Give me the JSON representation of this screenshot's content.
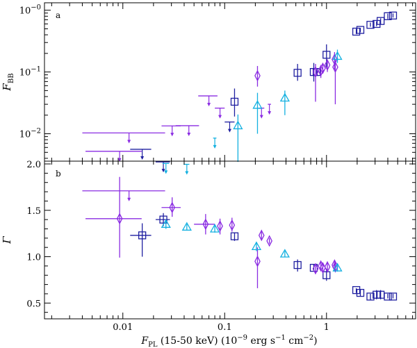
{
  "colors": {
    "purple": "#8a2be2",
    "navy": "#1f1fa0",
    "cyan": "#12b0e0",
    "axis": "#000000"
  },
  "chart_data": {
    "type": "scatter",
    "xlabel": "F_PL (15-50 keV) (10^-9 erg s^-1 cm^-2)",
    "xlabel_parts": {
      "main": "F",
      "sub": "PL",
      "rest": " (15-50 keV) (10",
      "exp1": "−9",
      "unit": " erg s",
      "exp2": "−1",
      "unit2": " cm",
      "exp3": "−2",
      "close": ")"
    },
    "x_scale": "log",
    "xlim": [
      0.0017,
      7.5
    ],
    "x_ticks": [
      {
        "v": 0.01,
        "label": "0.01"
      },
      {
        "v": 0.1,
        "label": "0.1"
      },
      {
        "v": 1,
        "label": "1"
      }
    ],
    "panels": [
      {
        "id": "a",
        "label": "a",
        "ylabel_main": "F",
        "ylabel_sub": "BB",
        "y_scale": "log",
        "ylim": [
          0.0036,
          1.32
        ],
        "y_ticks": [
          {
            "v": 0.01,
            "base": "10",
            "exp": "−2"
          },
          {
            "v": 0.1,
            "base": "10",
            "exp": "−1"
          },
          {
            "v": 1,
            "base": "10",
            "exp": "−0"
          }
        ],
        "upper_limits": [
          {
            "series": "purple",
            "x": 0.0115,
            "xerr": [
              0.004,
              0.026
            ],
            "y": 0.0103
          },
          {
            "series": "purple",
            "x": 0.0093,
            "xerr": [
              0.0043,
              0.0153
            ],
            "y": 0.0052
          },
          {
            "series": "navy",
            "x": 0.0155,
            "xerr": [
              0.0118,
              0.019
            ],
            "y": 0.0056
          },
          {
            "series": "navy",
            "x": 0.025,
            "xerr": [
              0.021,
              0.029
            ],
            "y": 0.0035
          },
          {
            "series": "cyan",
            "x": 0.0265,
            "xerr": [
              0.0245,
              0.0285
            ],
            "y": 0.0033
          },
          {
            "series": "purple",
            "x": 0.0305,
            "xerr": [
              0.024,
              0.037
            ],
            "y": 0.0134
          },
          {
            "series": "purple",
            "x": 0.0445,
            "xerr": [
              0.033,
              0.056
            ],
            "y": 0.0135
          },
          {
            "series": "cyan",
            "x": 0.0425,
            "xerr": [
              0.0395,
              0.045
            ],
            "y": 0.0032
          },
          {
            "series": "purple",
            "x": 0.07,
            "xerr": [
              0.055,
              0.085
            ],
            "y": 0.041
          },
          {
            "series": "purple",
            "x": 0.09,
            "xerr": [
              0.08,
              0.1
            ],
            "y": 0.026
          },
          {
            "series": "cyan",
            "x": 0.08,
            "xerr": [
              0.077,
              0.083
            ],
            "y": 0.0085
          },
          {
            "series": "navy",
            "x": 0.112,
            "xerr": [
              0.1,
              0.125
            ],
            "y": 0.0155
          },
          {
            "series": "purple",
            "x": 0.23,
            "xerr": [
              0.215,
              0.245
            ],
            "y": 0.026
          },
          {
            "series": "purple",
            "x": 0.275,
            "xerr": [
              0.265,
              0.285
            ],
            "y": 0.03
          }
        ],
        "series": [
          {
            "name": "navy squares",
            "color": "navy",
            "marker": "square",
            "points": [
              {
                "x": 0.125,
                "y": 0.033,
                "ylo": 0.019,
                "yhi": 0.054
              },
              {
                "x": 0.52,
                "y": 0.097,
                "ylo": 0.072,
                "yhi": 0.135
              },
              {
                "x": 0.75,
                "y": 0.1,
                "ylo": 0.07,
                "yhi": 0.14
              },
              {
                "x": 0.8,
                "y": 0.1,
                "ylo": 0.09,
                "yhi": 0.11
              },
              {
                "x": 1.0,
                "y": 0.19,
                "ylo": 0.12,
                "yhi": 0.28
              },
              {
                "x": 1.96,
                "y": 0.45,
                "ylo": 0.41,
                "yhi": 0.5
              },
              {
                "x": 2.15,
                "y": 0.48,
                "ylo": 0.44,
                "yhi": 0.52
              },
              {
                "x": 2.7,
                "y": 0.58,
                "ylo": 0.54,
                "yhi": 0.63
              },
              {
                "x": 3.1,
                "y": 0.6,
                "ylo": 0.55,
                "yhi": 0.66
              },
              {
                "x": 3.4,
                "y": 0.67,
                "ylo": 0.6,
                "yhi": 0.74
              },
              {
                "x": 4.0,
                "y": 0.8,
                "ylo": 0.72,
                "yhi": 0.88
              },
              {
                "x": 4.5,
                "y": 0.82,
                "ylo": 0.76,
                "yhi": 0.89
              }
            ]
          },
          {
            "name": "purple diamonds",
            "color": "purple",
            "marker": "diamond",
            "points": [
              {
                "x": 0.21,
                "y": 0.087,
                "ylo": 0.058,
                "yhi": 0.125
              },
              {
                "x": 0.78,
                "y": 0.1,
                "ylo": 0.033,
                "yhi": 0.135
              },
              {
                "x": 0.88,
                "y": 0.105,
                "ylo": 0.08,
                "yhi": 0.13
              },
              {
                "x": 0.92,
                "y": 0.115,
                "ylo": 0.095,
                "yhi": 0.135
              },
              {
                "x": 1.02,
                "y": 0.13,
                "ylo": 0.1,
                "yhi": 0.16
              },
              {
                "x": 1.2,
                "y": 0.16,
                "ylo": 0.11,
                "yhi": 0.21
              },
              {
                "x": 1.22,
                "y": 0.12,
                "ylo": 0.03,
                "yhi": 0.16
              }
            ]
          },
          {
            "name": "cyan triangles",
            "color": "cyan",
            "marker": "triangle",
            "points": [
              {
                "x": 0.135,
                "y": 0.0135,
                "ylo": 0.0035,
                "yhi": 0.0205
              },
              {
                "x": 0.21,
                "y": 0.029,
                "ylo": 0.01,
                "yhi": 0.046
              },
              {
                "x": 0.39,
                "y": 0.038,
                "ylo": 0.02,
                "yhi": 0.05
              },
              {
                "x": 1.28,
                "y": 0.18,
                "ylo": 0.14,
                "yhi": 0.23
              }
            ]
          }
        ]
      },
      {
        "id": "b",
        "label": "b",
        "ylabel_main": "Γ",
        "y_scale": "linear",
        "ylim": [
          0.33,
          2.03
        ],
        "y_ticks": [
          {
            "v": 0.5,
            "label": "0.5"
          },
          {
            "v": 1.0,
            "label": "1.0"
          },
          {
            "v": 1.5,
            "label": "1.5"
          },
          {
            "v": 2.0,
            "label": "2.0"
          }
        ],
        "upper_limits": [
          {
            "series": "purple",
            "x": 0.0115,
            "xerr": [
              0.004,
              0.026
            ],
            "y": 1.71
          }
        ],
        "series": [
          {
            "name": "navy squares",
            "color": "navy",
            "marker": "square",
            "points": [
              {
                "x": 0.0155,
                "y": 1.23,
                "ylo": 1.0,
                "yhi": 1.36,
                "xlo": 0.0118,
                "xhi": 0.019
              },
              {
                "x": 0.025,
                "y": 1.4,
                "ylo": 1.33,
                "yhi": 1.47,
                "xlo": 0.021,
                "xhi": 0.029
              },
              {
                "x": 0.125,
                "y": 1.22,
                "ylo": 1.17,
                "yhi": 1.26
              },
              {
                "x": 0.52,
                "y": 0.91,
                "ylo": 0.84,
                "yhi": 0.97
              },
              {
                "x": 0.75,
                "y": 0.88,
                "ylo": 0.85,
                "yhi": 0.92
              },
              {
                "x": 1.0,
                "y": 0.8,
                "ylo": 0.74,
                "yhi": 0.87
              },
              {
                "x": 1.96,
                "y": 0.64,
                "ylo": 0.61,
                "yhi": 0.66
              },
              {
                "x": 2.15,
                "y": 0.61,
                "ylo": 0.57,
                "yhi": 0.65
              },
              {
                "x": 2.7,
                "y": 0.57,
                "ylo": 0.53,
                "yhi": 0.6
              },
              {
                "x": 3.1,
                "y": 0.59,
                "ylo": 0.54,
                "yhi": 0.64
              },
              {
                "x": 3.4,
                "y": 0.59,
                "ylo": 0.54,
                "yhi": 0.64
              },
              {
                "x": 4.0,
                "y": 0.57,
                "ylo": 0.55,
                "yhi": 0.6
              },
              {
                "x": 4.5,
                "y": 0.57,
                "ylo": 0.55,
                "yhi": 0.6
              }
            ]
          },
          {
            "name": "purple diamonds",
            "color": "purple",
            "marker": "diamond",
            "points": [
              {
                "x": 0.0093,
                "y": 1.41,
                "ylo": 0.99,
                "yhi": 1.86,
                "xlo": 0.0043,
                "xhi": 0.0153
              },
              {
                "x": 0.0305,
                "y": 1.53,
                "ylo": 1.43,
                "yhi": 1.64,
                "xlo": 0.024,
                "xhi": 0.037
              },
              {
                "x": 0.065,
                "y": 1.35,
                "ylo": 1.24,
                "yhi": 1.46,
                "xlo": 0.05,
                "xhi": 0.08
              },
              {
                "x": 0.09,
                "y": 1.33,
                "ylo": 1.24,
                "yhi": 1.41
              },
              {
                "x": 0.118,
                "y": 1.34,
                "ylo": 1.27,
                "yhi": 1.42
              },
              {
                "x": 0.21,
                "y": 0.95,
                "ylo": 0.66,
                "yhi": 1.1
              },
              {
                "x": 0.23,
                "y": 1.23,
                "ylo": 1.19,
                "yhi": 1.27
              },
              {
                "x": 0.275,
                "y": 1.17,
                "ylo": 1.14,
                "yhi": 1.2
              },
              {
                "x": 0.78,
                "y": 0.87,
                "ylo": 0.82,
                "yhi": 0.92
              },
              {
                "x": 0.88,
                "y": 0.9,
                "ylo": 0.85,
                "yhi": 0.94
              },
              {
                "x": 0.92,
                "y": 0.88,
                "ylo": 0.84,
                "yhi": 0.92
              },
              {
                "x": 1.02,
                "y": 0.89,
                "ylo": 0.85,
                "yhi": 0.93
              },
              {
                "x": 1.2,
                "y": 0.91,
                "ylo": 0.87,
                "yhi": 0.95
              },
              {
                "x": 1.22,
                "y": 0.89,
                "ylo": 0.85,
                "yhi": 0.93
              }
            ]
          },
          {
            "name": "cyan triangles",
            "color": "cyan",
            "marker": "triangle",
            "points": [
              {
                "x": 0.0265,
                "y": 1.35,
                "ylo": 1.3,
                "yhi": 1.4
              },
              {
                "x": 0.0425,
                "y": 1.32,
                "ylo": 1.29,
                "yhi": 1.35
              },
              {
                "x": 0.08,
                "y": 1.3,
                "ylo": 1.26,
                "yhi": 1.34
              },
              {
                "x": 0.205,
                "y": 1.11,
                "ylo": 1.06,
                "yhi": 1.16
              },
              {
                "x": 0.39,
                "y": 1.03,
                "ylo": 1.0,
                "yhi": 1.06
              },
              {
                "x": 1.28,
                "y": 0.88,
                "ylo": 0.84,
                "yhi": 0.92
              }
            ]
          }
        ]
      }
    ]
  }
}
